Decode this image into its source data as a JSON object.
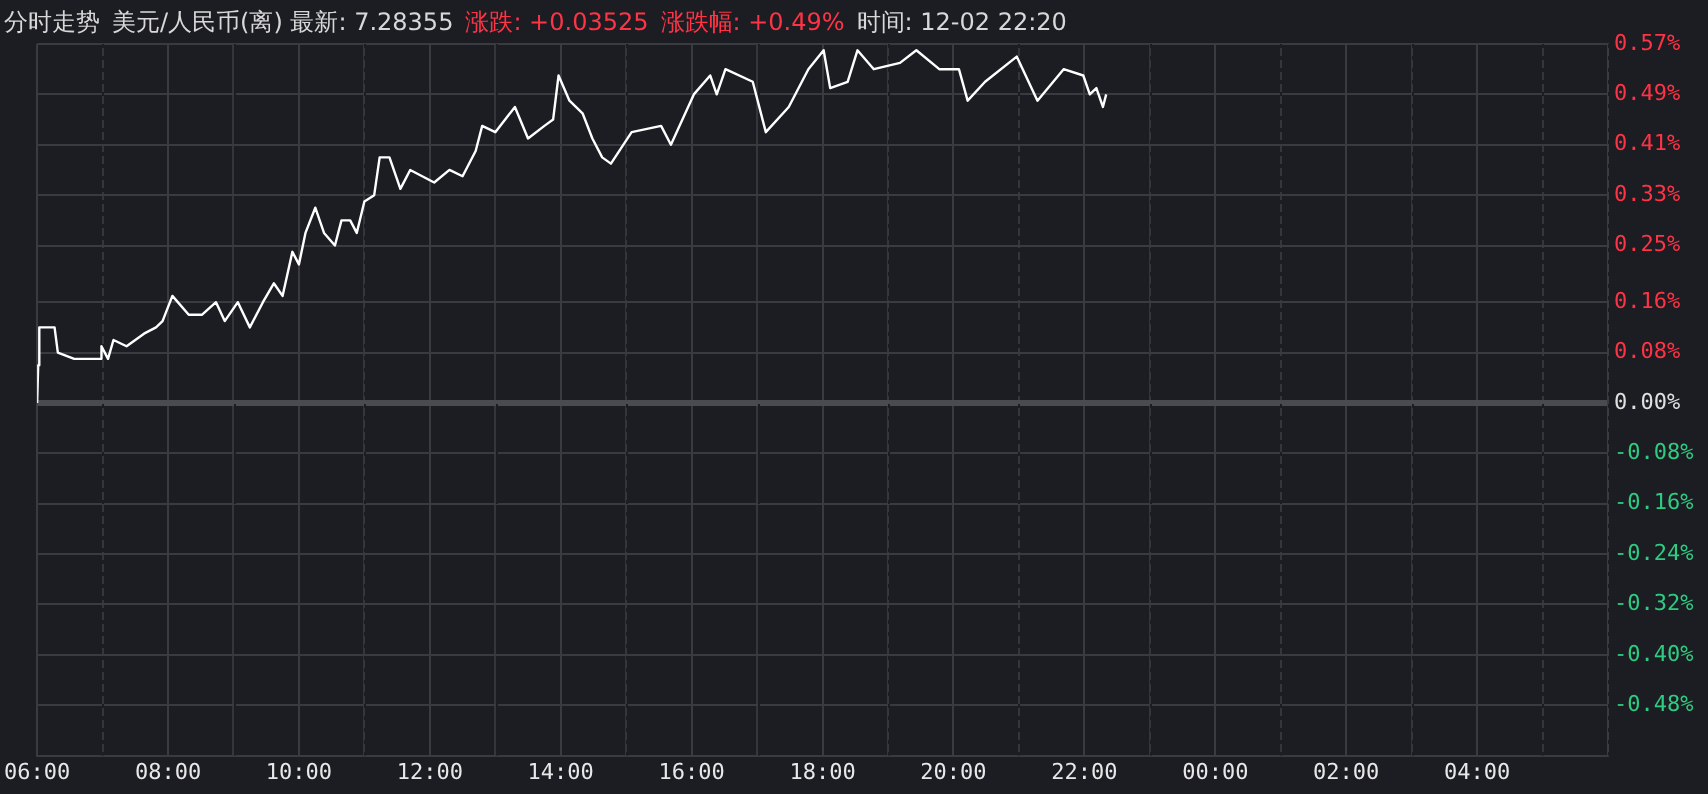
{
  "chart_data": {
    "type": "line",
    "title": "分时走势",
    "annotations": [
      "美元/人民币(离) 最新: 7.28355",
      "涨跌: +0.03525",
      "涨跌幅: +0.49%",
      "时间: 12-02 22:20"
    ],
    "series": [
      {
        "color": "#ffffff",
        "x": [
          "--12-02T06:00",
          "--12-02T06:01",
          "--12-02T06:02",
          "--12-02T06:16",
          "--12-02T06:19",
          "--12-02T06:34",
          "--12-02T06:58",
          "--12-02T06:59",
          "--12-02T07:05",
          "--12-02T07:10",
          "--12-02T07:22",
          "--12-02T07:38",
          "--12-02T07:49",
          "--12-02T07:55",
          "--12-02T08:04",
          "--12-02T08:19",
          "--12-02T08:31",
          "--12-02T08:44",
          "--12-02T08:52",
          "--12-02T09:04",
          "--12-02T09:15",
          "--12-02T09:27",
          "--12-02T09:37",
          "--12-02T09:45",
          "--12-02T09:54",
          "--12-02T10:00",
          "--12-02T10:06",
          "--12-02T10:15",
          "--12-02T10:23",
          "--12-02T10:33",
          "--12-02T10:39",
          "--12-02T10:47",
          "--12-02T10:53",
          "--12-02T11:00",
          "--12-02T11:09",
          "--12-02T11:14",
          "--12-02T11:23",
          "--12-02T11:33",
          "--12-02T11:42",
          "--12-02T12:04",
          "--12-02T12:18",
          "--12-02T12:30",
          "--12-02T12:42",
          "--12-02T12:48",
          "--12-02T13:00",
          "--12-02T13:18",
          "--12-02T13:30",
          "--12-02T13:45",
          "--12-02T13:53",
          "--12-02T13:58",
          "--12-02T14:08",
          "--12-02T14:20",
          "--12-02T14:29",
          "--12-02T14:38",
          "--12-02T14:46",
          "--12-02T15:05",
          "--12-02T15:32",
          "--12-02T15:41",
          "--12-02T16:02",
          "--12-02T16:17",
          "--12-02T16:23",
          "--12-02T16:31",
          "--12-02T16:56",
          "--12-02T17:08",
          "--12-02T17:29",
          "--12-02T17:47",
          "--12-02T18:01",
          "--12-02T18:07",
          "--12-02T18:23",
          "--12-02T18:32",
          "--12-02T18:47",
          "--12-02T19:11",
          "--12-02T19:26",
          "--12-02T19:47",
          "--12-02T20:05",
          "--12-02T20:13",
          "--12-02T20:29",
          "--12-02T20:58",
          "--12-02T21:17",
          "--12-02T21:41",
          "--12-02T21:59",
          "--12-02T22:05",
          "--12-02T22:11",
          "--12-02T22:17",
          "--12-02T22:20"
        ],
        "values": [
          0,
          0.06,
          0.12,
          0.12,
          0.08,
          0.07,
          0.07,
          0.09,
          0.07,
          0.1,
          0.09,
          0.11,
          0.12,
          0.13,
          0.17,
          0.14,
          0.14,
          0.16,
          0.13,
          0.16,
          0.12,
          0.16,
          0.19,
          0.17,
          0.24,
          0.22,
          0.27,
          0.31,
          0.27,
          0.25,
          0.29,
          0.29,
          0.27,
          0.32,
          0.33,
          0.39,
          0.39,
          0.34,
          0.37,
          0.35,
          0.37,
          0.36,
          0.4,
          0.44,
          0.43,
          0.47,
          0.42,
          0.44,
          0.45,
          0.52,
          0.48,
          0.46,
          0.42,
          0.39,
          0.38,
          0.43,
          0.44,
          0.41,
          0.49,
          0.52,
          0.49,
          0.53,
          0.51,
          0.43,
          0.47,
          0.53,
          0.56,
          0.5,
          0.51,
          0.56,
          0.53,
          0.54,
          0.56,
          0.53,
          0.53,
          0.48,
          0.51,
          0.55,
          0.48,
          0.53,
          0.52,
          0.49,
          0.5,
          0.47,
          0.49
        ]
      }
    ],
    "xlim": [
      "--12-02T06:00",
      "--12-03T06:00"
    ],
    "xticks": [
      {
        "value": "--12-02T06:00",
        "label": "06:00"
      },
      {
        "value": "--12-02T07:00",
        "label": null
      },
      {
        "value": "--12-02T08:00",
        "label": "08:00"
      },
      {
        "value": "--12-02T09:00",
        "label": null
      },
      {
        "value": "--12-02T10:00",
        "label": "10:00"
      },
      {
        "value": "--12-02T11:00",
        "label": null
      },
      {
        "value": "--12-02T12:00",
        "label": "12:00"
      },
      {
        "value": "--12-02T13:00",
        "label": null
      },
      {
        "value": "--12-02T14:00",
        "label": "14:00"
      },
      {
        "value": "--12-02T15:00",
        "label": null
      },
      {
        "value": "--12-02T16:00",
        "label": "16:00"
      },
      {
        "value": "--12-02T17:00",
        "label": null
      },
      {
        "value": "--12-02T18:00",
        "label": "18:00"
      },
      {
        "value": "--12-02T19:00",
        "label": null
      },
      {
        "value": "--12-02T20:00",
        "label": "20:00"
      },
      {
        "value": "--12-02T21:00",
        "label": null
      },
      {
        "value": "--12-02T22:00",
        "label": "22:00"
      },
      {
        "value": "--12-02T23:00",
        "label": null
      },
      {
        "value": "--12-03T00:00",
        "label": "00:00"
      },
      {
        "value": "--12-03T01:00",
        "label": null
      },
      {
        "value": "--12-03T02:00",
        "label": "02:00"
      },
      {
        "value": "--12-03T03:00",
        "label": null
      },
      {
        "value": "--12-03T04:00",
        "label": "04:00"
      },
      {
        "value": "--12-03T05:00",
        "label": null
      },
      {
        "value": "--12-03T06:00",
        "label": null
      }
    ],
    "ylim": [
      -0.56,
      0.57
    ],
    "yticks": [
      {
        "value": 0.57,
        "label": "0.57%"
      },
      {
        "value": 0.49,
        "label": "0.49%"
      },
      {
        "value": 0.41,
        "label": "0.41%"
      },
      {
        "value": 0.33,
        "label": "0.33%"
      },
      {
        "value": 0.25,
        "label": "0.25%"
      },
      {
        "value": 0.16,
        "label": "0.16%"
      },
      {
        "value": 0.08,
        "label": "0.08%"
      },
      {
        "value": 0,
        "label": "0.00%"
      },
      {
        "value": -0.08,
        "label": "-0.08%"
      },
      {
        "value": -0.16,
        "label": "-0.16%"
      },
      {
        "value": -0.24,
        "label": "-0.24%"
      },
      {
        "value": -0.32,
        "label": "-0.32%"
      },
      {
        "value": -0.4,
        "label": "-0.40%"
      },
      {
        "value": -0.48,
        "label": "-0.48%"
      }
    ],
    "grid": true,
    "legend": false,
    "marker": "none",
    "line_style": "solid"
  }
}
